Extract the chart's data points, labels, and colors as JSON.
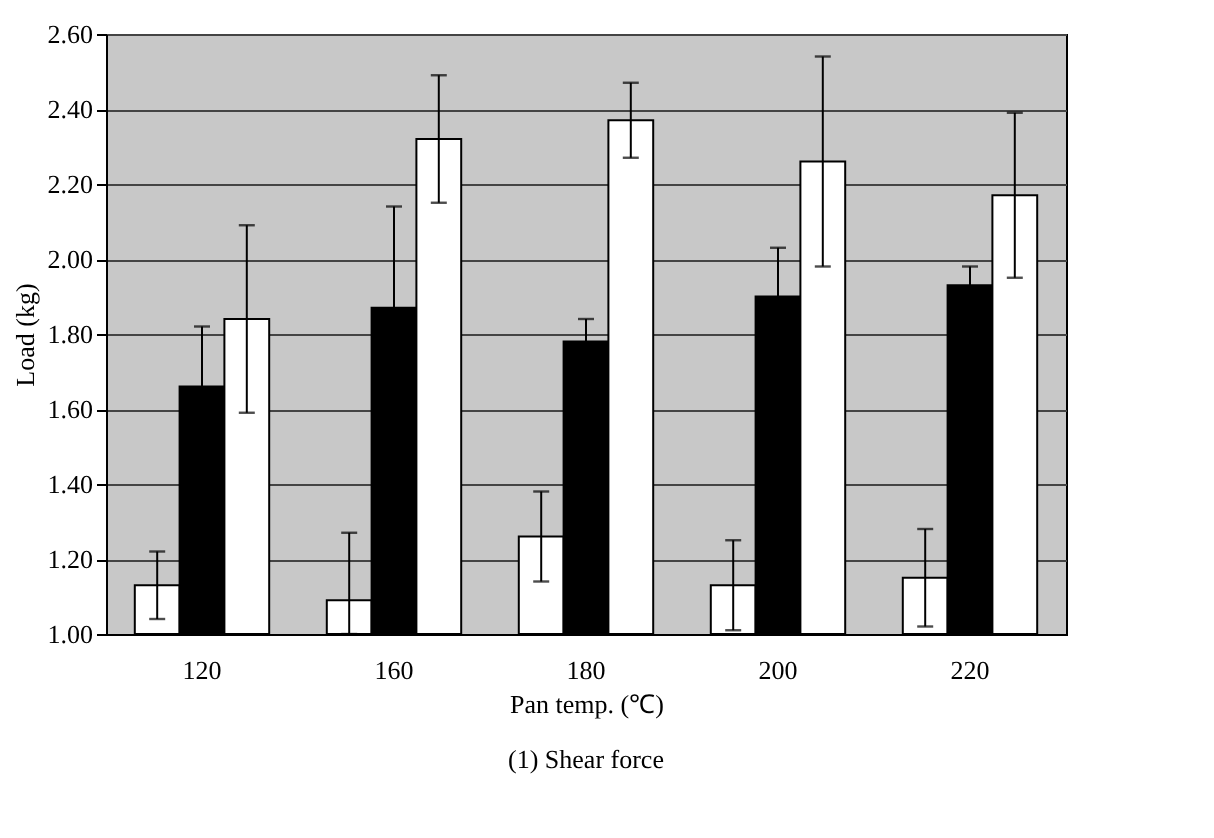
{
  "chart_data": {
    "type": "bar",
    "xlabel": "Pan temp. (℃)",
    "ylabel": "Load (kg)",
    "categories": [
      "120",
      "160",
      "180",
      "200",
      "220"
    ],
    "series": [
      {
        "color": "#ffffff",
        "values": [
          1.13,
          1.09,
          1.26,
          1.13,
          1.15
        ],
        "errors": [
          0.09,
          [
            1.0,
            1.27
          ],
          0.12,
          0.12,
          0.13
        ]
      },
      {
        "color": "#000000",
        "values": [
          1.66,
          1.87,
          1.78,
          1.9,
          1.93
        ],
        "errors": [
          0.16,
          0.27,
          0.06,
          0.13,
          0.05
        ]
      },
      {
        "color": "#ffffff",
        "values": [
          1.84,
          2.32,
          2.37,
          2.26,
          2.17
        ],
        "errors": [
          0.25,
          0.17,
          0.1,
          0.28,
          0.22
        ]
      }
    ],
    "ylim": [
      1.0,
      2.6
    ],
    "yticks": [
      {
        "value": 1.0,
        "label": "1.00"
      },
      {
        "value": 1.2,
        "label": "1.20"
      },
      {
        "value": 1.4,
        "label": "1.40"
      },
      {
        "value": 1.6,
        "label": "1.60"
      },
      {
        "value": 1.8,
        "label": "1.80"
      },
      {
        "value": 2.0,
        "label": "2.00"
      },
      {
        "value": 2.2,
        "label": "2.20"
      },
      {
        "value": 2.4,
        "label": "2.40"
      },
      {
        "value": 2.6,
        "label": "2.60"
      }
    ],
    "grid": "y",
    "annotations": [
      "(1) Shear force"
    ]
  }
}
